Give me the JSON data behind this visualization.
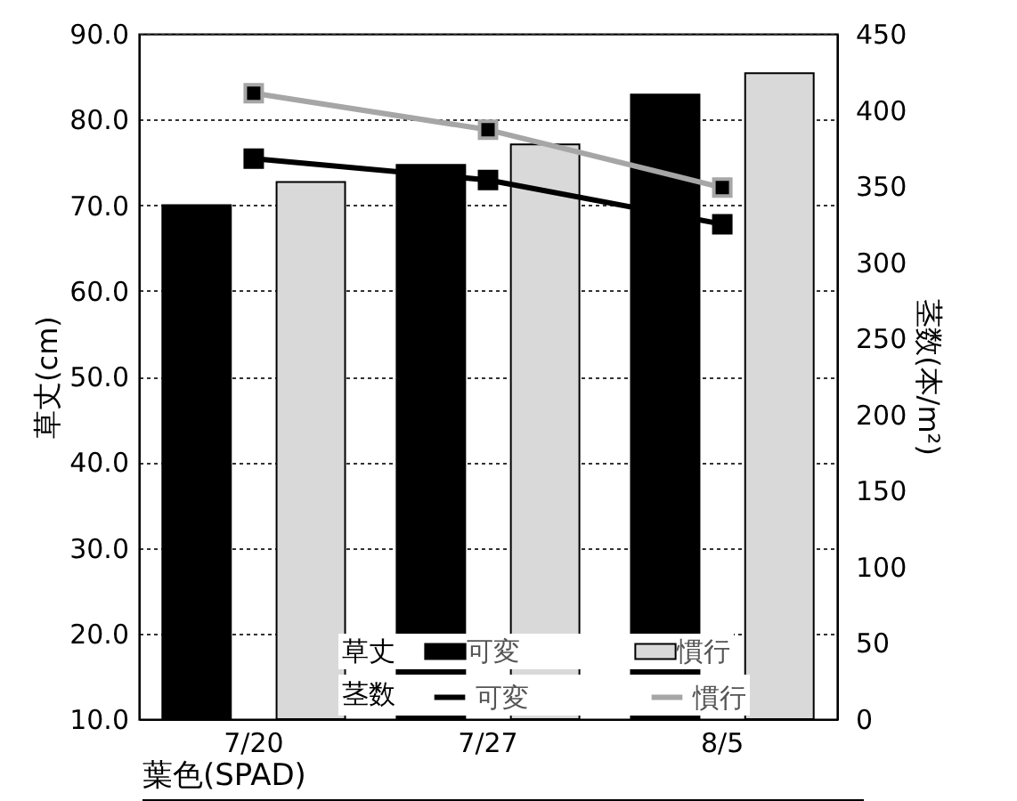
{
  "chart_data": {
    "type": "bar",
    "categories": [
      "7/20",
      "7/27",
      "8/5"
    ],
    "ylabel": "草丈(cm)",
    "y2label": "茎数(本/m²)",
    "ylim": [
      10,
      90
    ],
    "yticks": [
      {
        "value": 10,
        "label": "10.0"
      },
      {
        "value": 20,
        "label": "20.0"
      },
      {
        "value": 30,
        "label": "30.0"
      },
      {
        "value": 40,
        "label": "40.0"
      },
      {
        "value": 50,
        "label": "50.0"
      },
      {
        "value": 60,
        "label": "60.0"
      },
      {
        "value": 70,
        "label": "70.0"
      },
      {
        "value": 80,
        "label": "80.0"
      },
      {
        "value": 90,
        "label": "90.0"
      }
    ],
    "y2lim": [
      0,
      450
    ],
    "y2ticks": [
      0,
      50,
      100,
      150,
      200,
      250,
      300,
      350,
      400,
      450
    ],
    "grid": "y",
    "legend": "bottom right",
    "marker": "square",
    "annotations": [
      "草丈",
      "茎数",
      "葉色(SPAD)"
    ],
    "series": [
      {
        "name": "可変",
        "color": "#000000",
        "values": [
          70.0,
          74.7,
          82.9
        ]
      },
      {
        "name": "慣行",
        "color": "#d9d9d9",
        "values": [
          72.7,
          77.1,
          85.4
        ]
      },
      {
        "name": "可変",
        "type": "line",
        "axis": "y2",
        "color": "#000000",
        "values": [
          368,
          354,
          325
        ]
      },
      {
        "name": "慣行",
        "type": "line",
        "axis": "y2",
        "color": "#a6a6a6",
        "values": [
          411,
          387,
          349
        ]
      }
    ]
  }
}
